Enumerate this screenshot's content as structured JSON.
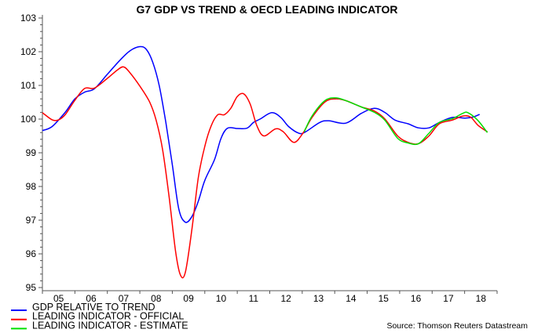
{
  "chart_data": {
    "type": "line",
    "title": "G7 GDP VS TREND & OECD LEADING INDICATOR",
    "xlabel": "",
    "ylabel": "",
    "ylim": [
      95,
      103
    ],
    "yticks": [
      95,
      96,
      97,
      98,
      99,
      100,
      101,
      102,
      103
    ],
    "xlim": [
      2005,
      2019
    ],
    "xtick_labels": [
      "05",
      "06",
      "07",
      "08",
      "09",
      "10",
      "11",
      "12",
      "13",
      "14",
      "15",
      "16",
      "17",
      "18"
    ],
    "grid": false,
    "legend_placement": "bottom-left",
    "source": "Source: Thomson Reuters Datastream",
    "series": [
      {
        "name": "GDP RELATIVE TO TREND",
        "color": "#0000ff",
        "x": [
          2005.0,
          2005.3,
          2005.7,
          2006.0,
          2006.3,
          2006.6,
          2007.0,
          2007.4,
          2007.7,
          2008.0,
          2008.2,
          2008.4,
          2008.6,
          2008.8,
          2009.0,
          2009.2,
          2009.4,
          2009.6,
          2009.8,
          2010.0,
          2010.3,
          2010.5,
          2010.7,
          2011.0,
          2011.3,
          2011.5,
          2011.7,
          2012.06,
          2012.34,
          2012.58,
          2012.9,
          2013.1,
          2013.54,
          2013.82,
          2014.34,
          2014.82,
          2015.22,
          2015.54,
          2015.86,
          2016.26,
          2016.58,
          2016.9,
          2017.22,
          2017.62,
          2018.02,
          2018.26,
          2018.46
        ],
        "y": [
          99.66,
          99.78,
          100.2,
          100.6,
          100.8,
          100.9,
          101.33,
          101.76,
          102.03,
          102.15,
          102.07,
          101.68,
          100.98,
          99.9,
          98.65,
          97.33,
          96.94,
          97.1,
          97.56,
          98.18,
          98.8,
          99.43,
          99.73,
          99.72,
          99.73,
          99.9,
          100.0,
          100.19,
          100.05,
          99.78,
          99.58,
          99.62,
          99.9,
          99.95,
          99.88,
          100.17,
          100.32,
          100.2,
          99.97,
          99.86,
          99.74,
          99.74,
          99.9,
          100.05,
          100.03,
          100.06,
          100.14
        ]
      },
      {
        "name": "LEADING INDICATOR - OFFICIAL",
        "color": "#ff0000",
        "x": [
          2005.0,
          2005.3,
          2005.5,
          2005.7,
          2006.0,
          2006.3,
          2006.6,
          2007.0,
          2007.3,
          2007.5,
          2007.7,
          2008.0,
          2008.3,
          2008.5,
          2008.7,
          2008.9,
          2009.1,
          2009.25,
          2009.4,
          2009.6,
          2009.8,
          2010.0,
          2010.2,
          2010.4,
          2010.6,
          2010.8,
          2011.0,
          2011.2,
          2011.4,
          2011.6,
          2011.82,
          2012.18,
          2012.42,
          2012.74,
          2013.02,
          2013.3,
          2013.7,
          2014.02,
          2014.34,
          2014.82,
          2015.22,
          2015.54,
          2015.94,
          2016.26,
          2016.58,
          2016.9,
          2017.22,
          2017.62,
          2017.94,
          2018.18,
          2018.42,
          2018.7
        ],
        "y": [
          100.19,
          99.98,
          99.98,
          100.13,
          100.56,
          100.91,
          100.92,
          101.21,
          101.45,
          101.55,
          101.37,
          100.98,
          100.51,
          99.97,
          99.1,
          97.7,
          96.07,
          95.37,
          95.45,
          96.7,
          98.26,
          99.19,
          99.81,
          100.13,
          100.13,
          100.32,
          100.67,
          100.75,
          100.44,
          99.81,
          99.5,
          99.71,
          99.62,
          99.31,
          99.58,
          100.05,
          100.51,
          100.6,
          100.55,
          100.36,
          100.24,
          100.01,
          99.5,
          99.31,
          99.27,
          99.5,
          99.86,
          99.97,
          100.09,
          100.06,
          99.81,
          99.62
        ]
      },
      {
        "name": "LEADING INDICATOR - ESTIMATE",
        "color": "#00e000",
        "x": [
          2013.06,
          2013.3,
          2013.7,
          2014.02,
          2014.34,
          2014.82,
          2015.22,
          2015.54,
          2015.94,
          2016.26,
          2016.58,
          2016.9,
          2017.22,
          2017.62,
          2017.94,
          2018.1,
          2018.4,
          2018.7
        ],
        "y": [
          99.62,
          100.09,
          100.55,
          100.63,
          100.55,
          100.36,
          100.2,
          99.97,
          99.43,
          99.29,
          99.27,
          99.58,
          99.9,
          100.01,
          100.17,
          100.19,
          99.97,
          99.6
        ]
      }
    ]
  }
}
